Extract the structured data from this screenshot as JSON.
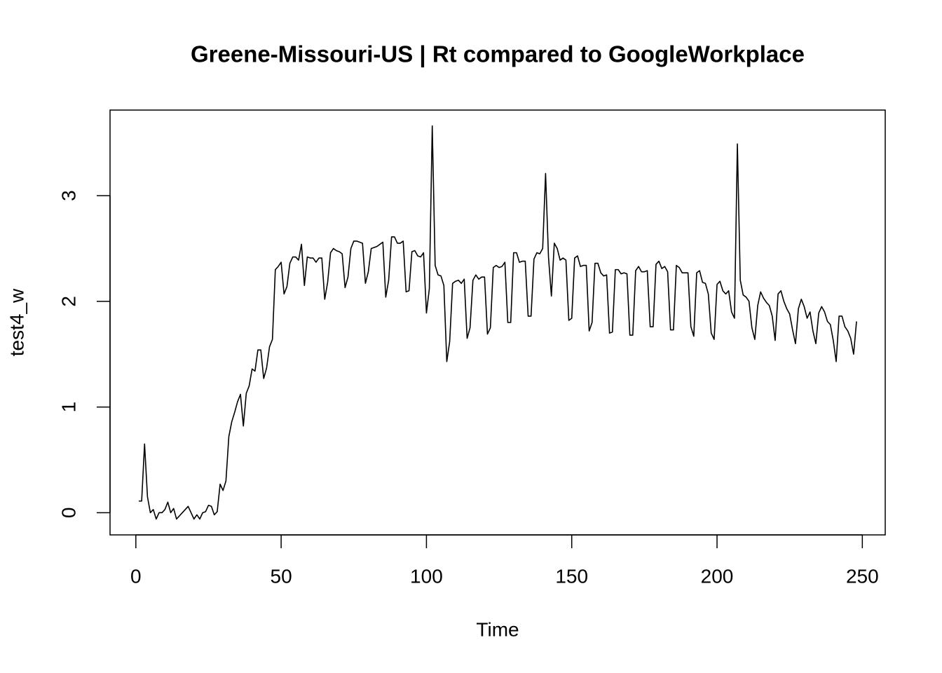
{
  "chart_data": {
    "type": "line",
    "title": "Greene-Missouri-US | Rt compared to GoogleWorkplace",
    "x_label": "Time",
    "y_label": "test4_w",
    "xlim": [
      -8.88,
      257.88
    ],
    "ylim": [
      -0.21,
      3.81
    ],
    "xticks": [
      0,
      50,
      100,
      150,
      200,
      250
    ],
    "yticks": [
      0,
      1,
      2,
      3
    ],
    "series": [
      {
        "color": "#000000",
        "x": [
          1,
          2,
          3,
          4,
          5,
          6,
          7,
          8,
          9,
          10,
          11,
          12,
          13,
          14,
          15,
          16,
          17,
          18,
          19,
          20,
          21,
          22,
          23,
          24,
          25,
          26,
          27,
          28,
          29,
          30,
          31,
          32,
          33,
          34,
          35,
          36,
          37,
          38,
          39,
          40,
          41,
          42,
          43,
          44,
          45,
          46,
          47,
          48,
          49,
          50,
          51,
          52,
          53,
          54,
          55,
          56,
          57,
          58,
          59,
          60,
          61,
          62,
          63,
          64,
          65,
          66,
          67,
          68,
          69,
          70,
          71,
          72,
          73,
          74,
          75,
          76,
          77,
          78,
          79,
          80,
          81,
          82,
          83,
          84,
          85,
          86,
          87,
          88,
          89,
          90,
          91,
          92,
          93,
          94,
          95,
          96,
          97,
          98,
          99,
          100,
          101,
          102,
          103,
          104,
          105,
          106,
          107,
          108,
          109,
          110,
          111,
          112,
          113,
          114,
          115,
          116,
          117,
          118,
          119,
          120,
          121,
          122,
          123,
          124,
          125,
          126,
          127,
          128,
          129,
          130,
          131,
          132,
          133,
          134,
          135,
          136,
          137,
          138,
          139,
          140,
          141,
          142,
          143,
          144,
          145,
          146,
          147,
          148,
          149,
          150,
          151,
          152,
          153,
          154,
          155,
          156,
          157,
          158,
          159,
          160,
          161,
          162,
          163,
          164,
          165,
          166,
          167,
          168,
          169,
          170,
          171,
          172,
          173,
          174,
          175,
          176,
          177,
          178,
          179,
          180,
          181,
          182,
          183,
          184,
          185,
          186,
          187,
          188,
          189,
          190,
          191,
          192,
          193,
          194,
          195,
          196,
          197,
          198,
          199,
          200,
          201,
          202,
          203,
          204,
          205,
          206,
          207,
          208,
          209,
          210,
          211,
          212,
          213,
          214,
          215,
          216,
          217,
          218,
          219,
          220,
          221,
          222,
          223,
          224,
          225,
          226,
          227,
          228,
          229,
          230,
          231,
          232,
          233,
          234,
          235,
          236,
          237,
          238,
          239,
          240,
          241,
          242,
          243,
          244,
          245,
          246,
          247,
          248
        ],
        "values": [
          0.11,
          0.11,
          0.65,
          0.15,
          0.0,
          0.03,
          -0.06,
          0.0,
          0.0,
          0.03,
          0.1,
          0.0,
          0.04,
          -0.06,
          -0.03,
          0.0,
          0.03,
          0.06,
          0.0,
          -0.06,
          -0.02,
          -0.06,
          0.0,
          0.01,
          0.07,
          0.06,
          -0.02,
          0.01,
          0.27,
          0.21,
          0.3,
          0.72,
          0.86,
          0.95,
          1.05,
          1.12,
          0.82,
          1.13,
          1.2,
          1.36,
          1.34,
          1.54,
          1.54,
          1.27,
          1.37,
          1.57,
          1.64,
          2.3,
          2.33,
          2.37,
          2.07,
          2.14,
          2.36,
          2.42,
          2.42,
          2.39,
          2.54,
          2.15,
          2.42,
          2.41,
          2.41,
          2.37,
          2.41,
          2.41,
          2.02,
          2.18,
          2.46,
          2.5,
          2.48,
          2.47,
          2.45,
          2.13,
          2.23,
          2.5,
          2.57,
          2.57,
          2.56,
          2.55,
          2.17,
          2.28,
          2.5,
          2.51,
          2.52,
          2.54,
          2.56,
          2.04,
          2.2,
          2.61,
          2.61,
          2.55,
          2.55,
          2.57,
          2.09,
          2.1,
          2.47,
          2.48,
          2.43,
          2.42,
          2.46,
          1.89,
          2.12,
          3.66,
          2.34,
          2.25,
          2.24,
          2.15,
          1.43,
          1.62,
          2.17,
          2.19,
          2.2,
          2.17,
          2.21,
          1.65,
          1.75,
          2.2,
          2.25,
          2.21,
          2.23,
          2.23,
          1.69,
          1.75,
          2.32,
          2.34,
          2.32,
          2.33,
          2.37,
          1.8,
          1.8,
          2.46,
          2.46,
          2.37,
          2.38,
          2.38,
          1.86,
          1.86,
          2.4,
          2.46,
          2.45,
          2.5,
          3.21,
          2.42,
          2.05,
          2.55,
          2.5,
          2.39,
          2.41,
          2.39,
          1.82,
          1.84,
          2.41,
          2.43,
          2.33,
          2.34,
          2.34,
          1.72,
          1.8,
          2.36,
          2.36,
          2.27,
          2.24,
          2.25,
          1.7,
          1.71,
          2.3,
          2.3,
          2.26,
          2.27,
          2.26,
          1.68,
          1.68,
          2.29,
          2.33,
          2.28,
          2.28,
          2.29,
          1.76,
          1.76,
          2.35,
          2.38,
          2.31,
          2.33,
          2.28,
          1.73,
          1.73,
          2.34,
          2.32,
          2.27,
          2.27,
          2.27,
          1.76,
          1.67,
          2.27,
          2.29,
          2.18,
          2.17,
          2.07,
          1.7,
          1.64,
          2.16,
          2.19,
          2.1,
          2.07,
          2.1,
          1.9,
          1.84,
          3.49,
          2.2,
          2.06,
          2.04,
          2.0,
          1.75,
          1.64,
          1.96,
          2.09,
          2.03,
          1.99,
          1.96,
          1.86,
          1.63,
          2.07,
          2.1,
          2.0,
          1.93,
          1.88,
          1.73,
          1.6,
          1.93,
          2.02,
          1.95,
          1.84,
          1.9,
          1.72,
          1.6,
          1.89,
          1.95,
          1.9,
          1.81,
          1.78,
          1.63,
          1.43,
          1.86,
          1.86,
          1.76,
          1.72,
          1.65,
          1.5,
          1.81
        ]
      }
    ]
  }
}
